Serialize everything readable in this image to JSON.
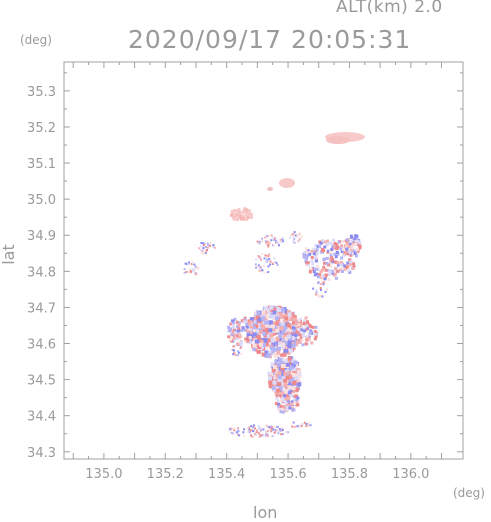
{
  "header": {
    "altitude_label": "ALT(km) 2.0",
    "timestamp": "2020/09/17 20:05:31"
  },
  "axes": {
    "y_unit": "(deg)",
    "x_unit": "(deg)",
    "y_label": "lat",
    "x_label": "lon",
    "x_range": [
      134.87,
      136.17
    ],
    "y_range": [
      34.28,
      35.38
    ],
    "x_ticks": [
      "135.0",
      "135.2",
      "135.4",
      "135.6",
      "135.8",
      "136.0"
    ],
    "y_ticks": [
      "34.3",
      "34.4",
      "34.5",
      "34.6",
      "34.7",
      "34.8",
      "34.9",
      "35.0",
      "35.1",
      "35.2",
      "35.3"
    ]
  },
  "colors": {
    "frame": "#a0a0a0",
    "text": "#9a9a9a",
    "positive": "#f08a8a",
    "negative": "#8c8cf0",
    "light_pink": "#f7c9c9"
  }
}
